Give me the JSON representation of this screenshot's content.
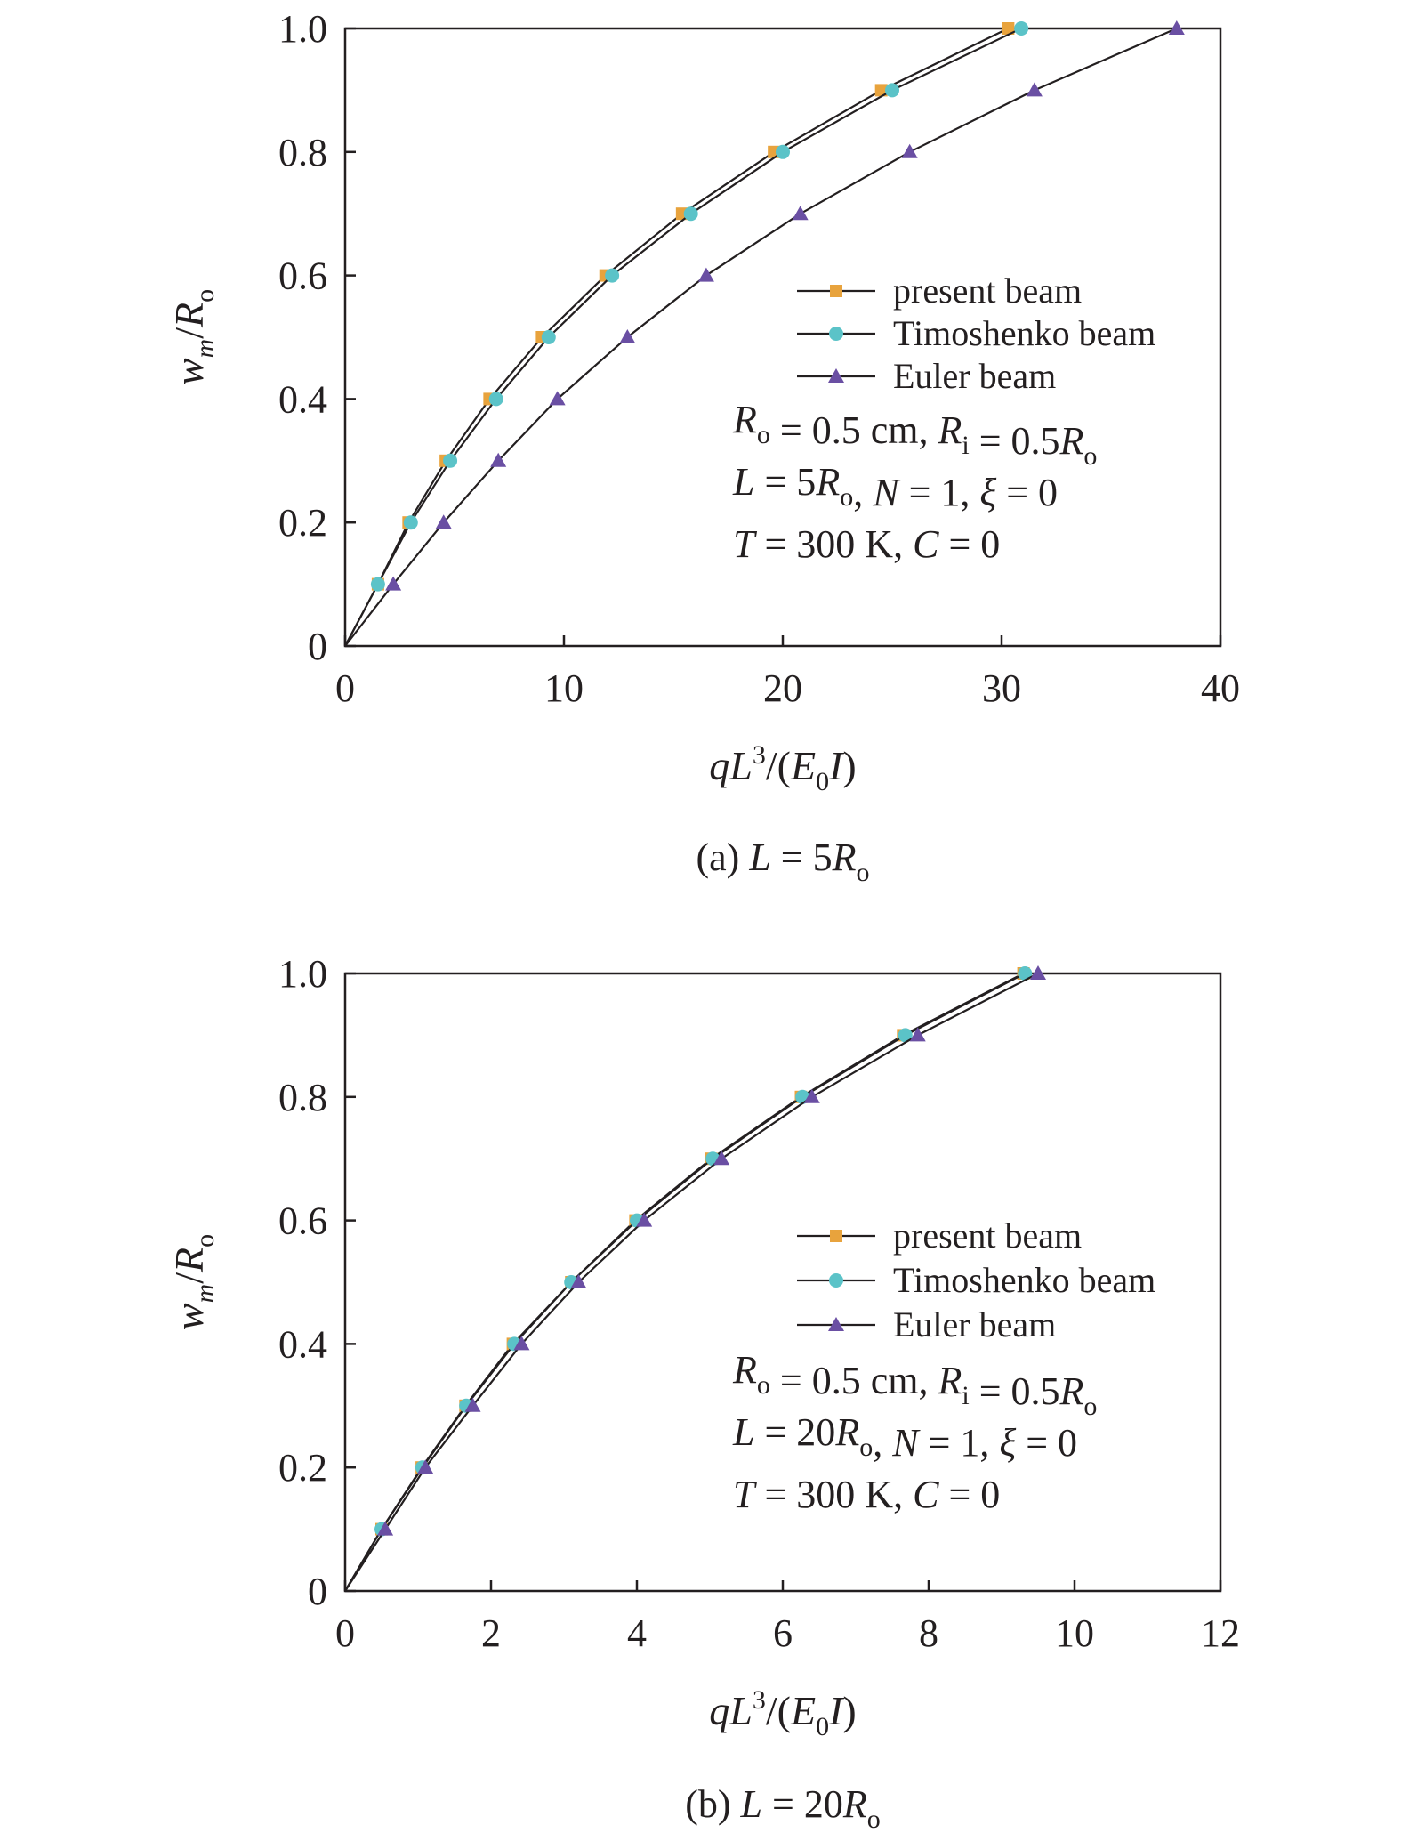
{
  "chart_data": [
    {
      "type": "line",
      "caption": [
        "(a) ",
        "L",
        " = 5",
        "R",
        "o"
      ],
      "xlabel": [
        "q",
        "L",
        "3",
        "/(",
        "E",
        "0",
        "I",
        ")"
      ],
      "ylabel": [
        "w",
        "m",
        "/",
        "R",
        "o"
      ],
      "xlim": [
        0,
        40
      ],
      "ylim": [
        0,
        1.0
      ],
      "xticks": [
        0,
        10,
        20,
        30,
        40
      ],
      "xtick_labels": [
        "0",
        "10",
        "20",
        "30",
        "40"
      ],
      "yticks": [
        0,
        0.2,
        0.4,
        0.6,
        0.8,
        1.0
      ],
      "ytick_labels": [
        "0",
        "0.2",
        "0.4",
        "0.6",
        "0.8",
        "1.0"
      ],
      "grid": false,
      "legend_position": "center-right",
      "series": [
        {
          "name": "present beam",
          "marker": "square",
          "color": "#e8a33d",
          "x": [
            0,
            1.5,
            2.9,
            4.6,
            6.6,
            9.0,
            11.9,
            15.4,
            19.6,
            24.5,
            30.3
          ],
          "y": [
            0,
            0.1,
            0.2,
            0.3,
            0.4,
            0.5,
            0.6,
            0.7,
            0.8,
            0.9,
            1.0
          ]
        },
        {
          "name": "Timoshenko beam",
          "marker": "circle",
          "color": "#5bc3c8",
          "x": [
            0,
            1.5,
            3.0,
            4.8,
            6.9,
            9.3,
            12.2,
            15.8,
            20.0,
            25.0,
            30.9
          ],
          "y": [
            0,
            0.1,
            0.2,
            0.3,
            0.4,
            0.5,
            0.6,
            0.7,
            0.8,
            0.9,
            1.0
          ]
        },
        {
          "name": "Euler beam",
          "marker": "triangle",
          "color": "#6a4fa3",
          "x": [
            0,
            2.2,
            4.5,
            7.0,
            9.7,
            12.9,
            16.5,
            20.8,
            25.8,
            31.5,
            38.0
          ],
          "y": [
            0,
            0.1,
            0.2,
            0.3,
            0.4,
            0.5,
            0.6,
            0.7,
            0.8,
            0.9,
            1.0
          ]
        }
      ],
      "annotation": [
        [
          [
            "R",
            "o"
          ],
          " = 0.5 cm, ",
          [
            "R",
            "i"
          ],
          " = 0.5",
          [
            "R",
            "o"
          ]
        ],
        [
          "L",
          " = 5",
          [
            "R",
            "o"
          ],
          ", ",
          "N",
          " = 1, ",
          "ξ",
          " = 0"
        ],
        [
          "T",
          " = 300 K, ",
          "C",
          " = 0"
        ]
      ]
    },
    {
      "type": "line",
      "caption": [
        "(b) ",
        "L",
        " = 20",
        "R",
        "o"
      ],
      "xlabel": [
        "q",
        "L",
        "3",
        "/(",
        "E",
        "0",
        "I",
        ")"
      ],
      "ylabel": [
        "w",
        "m",
        "/",
        "R",
        "o"
      ],
      "xlim": [
        0,
        12
      ],
      "ylim": [
        0,
        1.0
      ],
      "xticks": [
        0,
        2,
        4,
        6,
        8,
        10,
        12
      ],
      "xtick_labels": [
        "0",
        "2",
        "4",
        "6",
        "8",
        "10",
        "12"
      ],
      "yticks": [
        0,
        0.2,
        0.4,
        0.6,
        0.8,
        1.0
      ],
      "ytick_labels": [
        "0",
        "0.2",
        "0.4",
        "0.6",
        "0.8",
        "1.0"
      ],
      "grid": false,
      "legend_position": "center-right",
      "series": [
        {
          "name": "present beam",
          "marker": "square",
          "color": "#e8a33d",
          "x": [
            0,
            0.5,
            1.05,
            1.65,
            2.3,
            3.1,
            3.98,
            5.02,
            6.25,
            7.65,
            9.3
          ],
          "y": [
            0,
            0.1,
            0.2,
            0.3,
            0.4,
            0.5,
            0.6,
            0.7,
            0.8,
            0.9,
            1.0
          ]
        },
        {
          "name": "Timoshenko beam",
          "marker": "circle",
          "color": "#5bc3c8",
          "x": [
            0,
            0.5,
            1.06,
            1.66,
            2.32,
            3.1,
            4.0,
            5.04,
            6.27,
            7.68,
            9.32
          ],
          "y": [
            0,
            0.1,
            0.2,
            0.3,
            0.4,
            0.5,
            0.6,
            0.7,
            0.8,
            0.9,
            1.0
          ]
        },
        {
          "name": "Euler beam",
          "marker": "triangle",
          "color": "#6a4fa3",
          "x": [
            0,
            0.55,
            1.1,
            1.75,
            2.42,
            3.2,
            4.1,
            5.16,
            6.4,
            7.85,
            9.5
          ],
          "y": [
            0,
            0.1,
            0.2,
            0.3,
            0.4,
            0.5,
            0.6,
            0.7,
            0.8,
            0.9,
            1.0
          ]
        }
      ],
      "annotation": [
        [
          [
            "R",
            "o"
          ],
          " = 0.5 cm, ",
          [
            "R",
            "i"
          ],
          " = 0.5",
          [
            "R",
            "o"
          ]
        ],
        [
          "L",
          " = 20",
          [
            "R",
            "o"
          ],
          ", ",
          "N",
          " = 1, ",
          "ξ",
          " = 0"
        ],
        [
          "T",
          " = 300 K, ",
          "C",
          " = 0"
        ]
      ]
    }
  ]
}
